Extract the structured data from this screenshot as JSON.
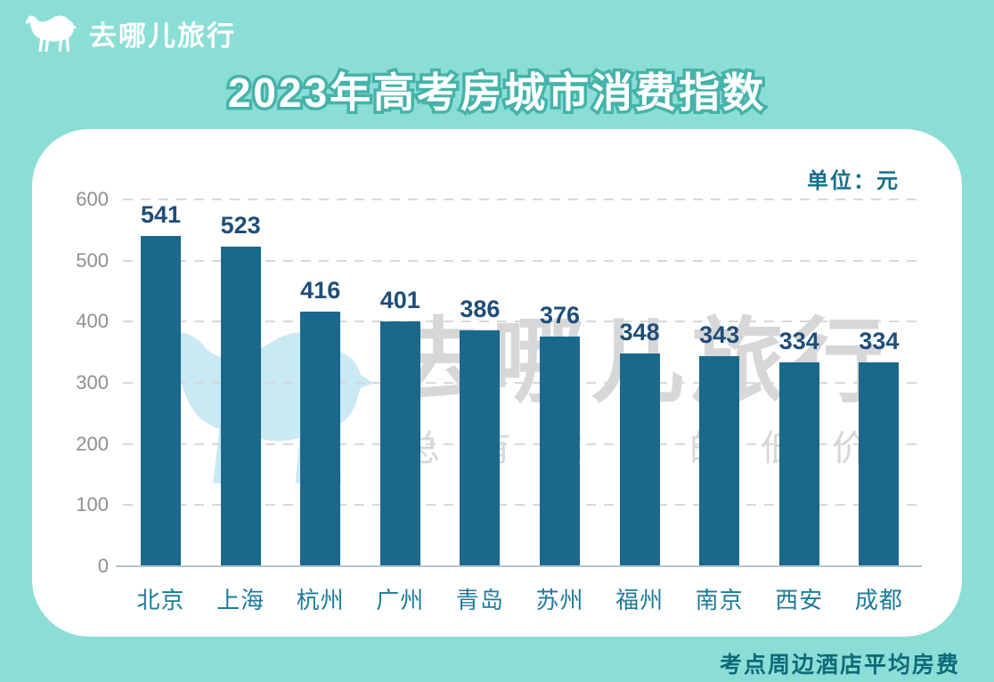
{
  "header": {
    "brand": "去哪儿旅行",
    "title": "2023年高考房城市消费指数"
  },
  "chart_area": {
    "unit_label": "单位：元"
  },
  "watermark": {
    "brand": "去哪儿旅行",
    "tagline": "总有你要的低价"
  },
  "footer": {
    "caption": "考点周边酒店平均房费"
  },
  "colors": {
    "background": "#8BDED6",
    "card": "#FFFFFF",
    "bar": "#1A698C",
    "value_label": "#1F4E79",
    "city_label": "#1E7A9A",
    "title_fill": "#FFFFFF",
    "title_stroke": "#45B3A9",
    "unit_label": "#16708C",
    "footer_caption": "#0F6B79",
    "gridline": "#D8D8D8",
    "watermark_gray": "#D7D7D7",
    "watermark_camel": "#C9E9F4"
  },
  "chart_data": {
    "type": "bar",
    "title": "2023年高考房城市消费指数",
    "unit": "元",
    "categories": [
      "北京",
      "上海",
      "杭州",
      "广州",
      "青岛",
      "苏州",
      "福州",
      "南京",
      "西安",
      "成都"
    ],
    "values": [
      541,
      523,
      416,
      401,
      386,
      376,
      348,
      343,
      334,
      334
    ],
    "xlabel": "",
    "ylabel": "",
    "ylim": [
      0,
      600
    ],
    "yticks": [
      0,
      100,
      200,
      300,
      400,
      500,
      600
    ],
    "grid": "horizontal-dashed",
    "legend": "none",
    "bar_color": "#1A698C",
    "source_note": "考点周边酒店平均房费"
  }
}
